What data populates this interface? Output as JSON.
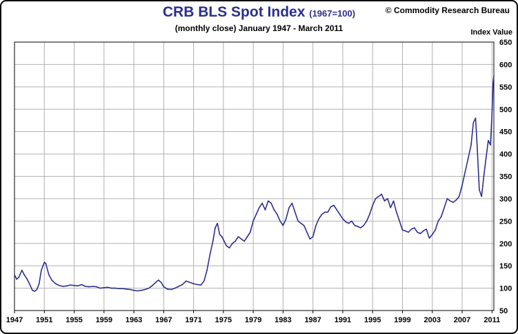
{
  "chart_data": {
    "type": "line",
    "title": "CRB BLS Spot Index",
    "title_scale": "(1967=100)",
    "subtitle": "(monthly close) January 1947 - March 2011",
    "source": "© Commodity Research Bureau",
    "ylabel": "Index Value",
    "xlabel": "",
    "xlim": [
      1947,
      2011.25
    ],
    "ylim": [
      50,
      650
    ],
    "x_ticks": [
      1947,
      1951,
      1955,
      1959,
      1963,
      1967,
      1971,
      1975,
      1979,
      1983,
      1987,
      1991,
      1995,
      1999,
      2003,
      2007,
      2011
    ],
    "y_ticks": [
      50,
      100,
      150,
      200,
      250,
      300,
      350,
      400,
      450,
      500,
      550,
      600,
      650
    ],
    "grid": true,
    "line_color": "#2b2f8f",
    "series": [
      {
        "x": [
          1947.0,
          1947.3,
          1947.6,
          1948.0,
          1948.3,
          1948.7,
          1949.0,
          1949.4,
          1949.7,
          1950.0,
          1950.3,
          1950.6,
          1951.0,
          1951.2,
          1951.6,
          1952.0,
          1952.5,
          1953.0,
          1953.5,
          1954.0,
          1954.5,
          1955.0,
          1955.5,
          1956.0,
          1956.5,
          1957.0,
          1957.5,
          1958.0,
          1958.5,
          1959.0,
          1959.5,
          1960.0,
          1960.5,
          1961.0,
          1961.5,
          1962.0,
          1962.5,
          1963.0,
          1963.5,
          1964.0,
          1964.5,
          1965.0,
          1965.5,
          1966.0,
          1966.3,
          1966.7,
          1967.0,
          1967.5,
          1968.0,
          1968.5,
          1969.0,
          1969.5,
          1970.0,
          1970.5,
          1971.0,
          1971.5,
          1972.0,
          1972.4,
          1972.8,
          1973.2,
          1973.6,
          1973.9,
          1974.2,
          1974.5,
          1974.8,
          1975.1,
          1975.4,
          1975.8,
          1976.2,
          1976.6,
          1977.0,
          1977.4,
          1977.8,
          1978.2,
          1978.6,
          1979.0,
          1979.4,
          1979.8,
          1980.2,
          1980.6,
          1981.0,
          1981.4,
          1981.8,
          1982.2,
          1982.6,
          1983.0,
          1983.4,
          1983.8,
          1984.2,
          1984.6,
          1985.0,
          1985.4,
          1985.8,
          1986.2,
          1986.6,
          1987.0,
          1987.4,
          1987.8,
          1988.2,
          1988.6,
          1989.0,
          1989.4,
          1989.8,
          1990.2,
          1990.6,
          1991.0,
          1991.4,
          1991.8,
          1992.2,
          1992.6,
          1993.0,
          1993.4,
          1993.8,
          1994.2,
          1994.6,
          1995.0,
          1995.4,
          1995.8,
          1996.2,
          1996.6,
          1997.0,
          1997.4,
          1997.8,
          1998.2,
          1998.6,
          1999.0,
          1999.4,
          1999.8,
          2000.2,
          2000.6,
          2001.0,
          2001.4,
          2001.8,
          2002.2,
          2002.6,
          2003.0,
          2003.4,
          2003.8,
          2004.2,
          2004.6,
          2005.0,
          2005.4,
          2005.8,
          2006.2,
          2006.6,
          2007.0,
          2007.4,
          2007.8,
          2008.2,
          2008.5,
          2008.8,
          2009.0,
          2009.3,
          2009.6,
          2009.9,
          2010.2,
          2010.5,
          2010.8,
          2011.0,
          2011.15,
          2011.25
        ],
        "values": [
          130,
          120,
          125,
          140,
          130,
          120,
          110,
          95,
          93,
          97,
          110,
          140,
          158,
          155,
          130,
          118,
          110,
          106,
          104,
          105,
          107,
          106,
          105,
          108,
          104,
          103,
          104,
          103,
          100,
          101,
          102,
          100,
          100,
          99,
          99,
          98,
          97,
          95,
          94,
          95,
          97,
          100,
          106,
          114,
          118,
          112,
          103,
          98,
          97,
          100,
          104,
          108,
          116,
          113,
          110,
          108,
          107,
          116,
          140,
          175,
          205,
          235,
          245,
          220,
          215,
          205,
          195,
          190,
          200,
          205,
          215,
          210,
          205,
          215,
          225,
          250,
          265,
          280,
          290,
          275,
          295,
          290,
          275,
          265,
          250,
          240,
          255,
          280,
          290,
          270,
          250,
          245,
          240,
          225,
          210,
          215,
          240,
          255,
          265,
          270,
          270,
          282,
          285,
          275,
          265,
          255,
          248,
          245,
          250,
          240,
          238,
          235,
          240,
          250,
          265,
          285,
          300,
          305,
          310,
          295,
          300,
          280,
          295,
          270,
          250,
          230,
          228,
          225,
          232,
          235,
          225,
          222,
          228,
          232,
          212,
          220,
          230,
          250,
          260,
          280,
          300,
          295,
          292,
          297,
          305,
          330,
          360,
          390,
          420,
          470,
          480,
          420,
          320,
          305,
          350,
          390,
          430,
          420,
          490,
          560,
          575
        ]
      }
    ]
  }
}
